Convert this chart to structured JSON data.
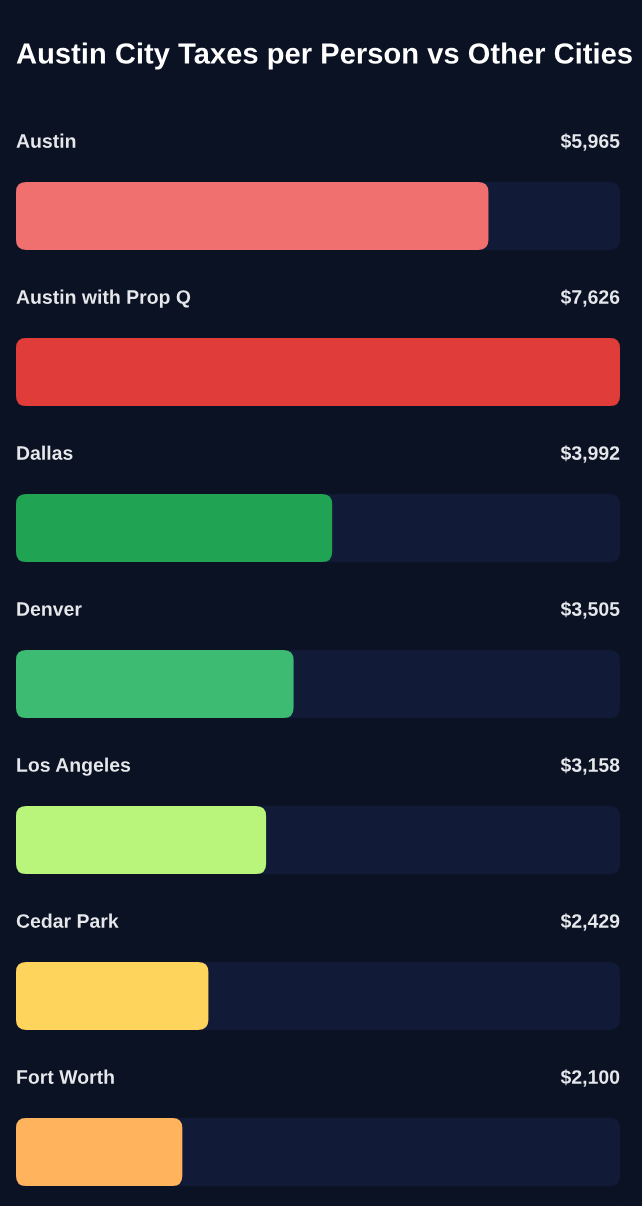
{
  "chart_data": {
    "type": "bar",
    "orientation": "horizontal",
    "title": "Austin City Taxes per Person vs Other Cities",
    "categories": [
      "Austin",
      "Austin with Prop Q",
      "Dallas",
      "Denver",
      "Los Angeles",
      "Cedar Park",
      "Fort Worth"
    ],
    "values": [
      5965,
      7626,
      3992,
      3505,
      3158,
      2429,
      2100
    ],
    "colors": [
      "#f07070",
      "#e03c3a",
      "#21a354",
      "#3dbb72",
      "#b8f57a",
      "#ffd45c",
      "#ffb35c"
    ],
    "value_labels": [
      "$5,965",
      "$7,626",
      "$3,992",
      "$3,505",
      "$3,158",
      "$2,429",
      "$2,100"
    ],
    "xlim": [
      0,
      7626
    ]
  }
}
